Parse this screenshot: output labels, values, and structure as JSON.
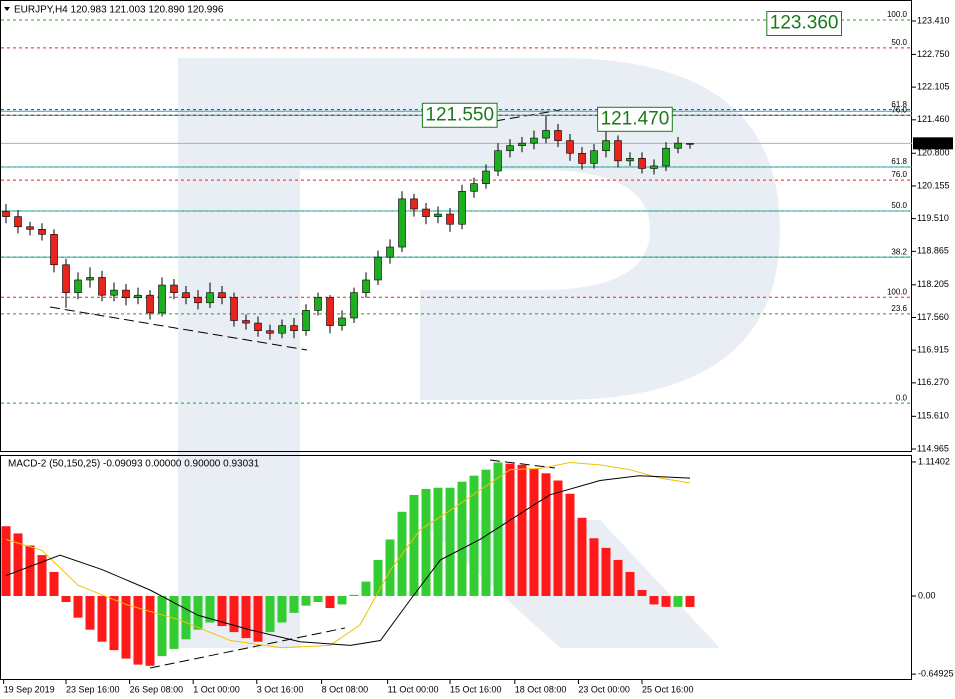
{
  "chart_data": [
    {
      "type": "candlestick",
      "title": "EURJPY,H4  120.983 121.003 120.890 120.996",
      "xlim": [
        -0.5,
        75.5
      ],
      "ylim": [
        114.906,
        123.824
      ],
      "yticks": [
        {
          "value": 123.41,
          "label": "123.410"
        },
        {
          "value": 122.75,
          "label": "122.750"
        },
        {
          "value": 122.105,
          "label": "122.105"
        },
        {
          "value": 121.46,
          "label": "121.460"
        },
        {
          "value": 120.8,
          "label": "120.800"
        },
        {
          "value": 120.155,
          "label": "120.155"
        },
        {
          "value": 119.51,
          "label": "119.510"
        },
        {
          "value": 118.865,
          "label": "118.865"
        },
        {
          "value": 118.205,
          "label": "118.205"
        },
        {
          "value": 117.56,
          "label": "117.560"
        },
        {
          "value": 116.915,
          "label": "116.915"
        },
        {
          "value": 116.27,
          "label": "116.270"
        },
        {
          "value": 115.61,
          "label": "115.610"
        },
        {
          "value": 114.965,
          "label": "114.965"
        }
      ],
      "up_color": "#1fae1f",
      "down_color": "#e8251c",
      "open": [
        119.65,
        119.55,
        119.35,
        119.3,
        119.2,
        118.6,
        118.05,
        118.3,
        118.35,
        118.0,
        118.1,
        117.95,
        118.0,
        117.65,
        118.2,
        118.05,
        117.95,
        117.85,
        118.05,
        117.95,
        117.5,
        117.45,
        117.3,
        117.25,
        117.4,
        117.3,
        117.7,
        117.95,
        117.4,
        117.55,
        118.05,
        118.3,
        118.75,
        118.95,
        119.9,
        119.7,
        119.55,
        119.6,
        119.4,
        120.05,
        120.2,
        120.45,
        120.85,
        120.95,
        121.0,
        121.1,
        121.25,
        121.05,
        120.8,
        120.6,
        120.85,
        121.05,
        120.65,
        120.7,
        120.5,
        120.55,
        120.9,
        120.983
      ],
      "high": [
        119.8,
        119.68,
        119.45,
        119.42,
        119.3,
        118.72,
        118.45,
        118.55,
        118.48,
        118.25,
        118.22,
        118.15,
        118.1,
        118.35,
        118.32,
        118.18,
        118.1,
        118.25,
        118.18,
        118.05,
        117.62,
        117.58,
        117.42,
        117.52,
        117.55,
        117.82,
        118.05,
        118.0,
        117.7,
        118.15,
        118.45,
        118.88,
        119.1,
        120.05,
        120.0,
        119.82,
        119.75,
        119.72,
        120.18,
        120.32,
        120.58,
        121.0,
        121.08,
        121.12,
        121.25,
        121.55,
        121.38,
        121.18,
        120.92,
        120.98,
        121.47,
        121.15,
        120.82,
        120.82,
        120.68,
        121.02,
        121.12,
        121.003
      ],
      "low": [
        119.42,
        119.22,
        119.18,
        119.08,
        118.45,
        117.75,
        117.92,
        118.15,
        117.88,
        117.88,
        117.8,
        117.82,
        117.52,
        117.58,
        117.92,
        117.82,
        117.72,
        117.75,
        117.82,
        117.38,
        117.32,
        117.18,
        117.12,
        117.15,
        117.15,
        117.2,
        117.6,
        117.25,
        117.3,
        117.45,
        117.95,
        118.2,
        118.62,
        118.85,
        119.55,
        119.4,
        119.42,
        119.25,
        119.3,
        119.92,
        120.1,
        120.35,
        120.72,
        120.82,
        120.88,
        121.0,
        120.92,
        120.65,
        120.48,
        120.5,
        120.72,
        120.52,
        120.55,
        120.4,
        120.38,
        120.45,
        120.8,
        120.89
      ],
      "close": [
        119.55,
        119.35,
        119.3,
        119.2,
        118.6,
        118.05,
        118.3,
        118.35,
        118.0,
        118.1,
        117.95,
        118.0,
        117.65,
        118.2,
        118.05,
        117.95,
        117.85,
        118.05,
        117.95,
        117.5,
        117.45,
        117.3,
        117.25,
        117.4,
        117.3,
        117.7,
        117.95,
        117.4,
        117.55,
        118.05,
        118.3,
        118.75,
        118.95,
        119.9,
        119.7,
        119.55,
        119.6,
        119.4,
        120.05,
        120.2,
        120.45,
        120.85,
        120.95,
        121.0,
        121.1,
        121.25,
        121.05,
        120.8,
        120.6,
        120.85,
        121.05,
        120.65,
        120.7,
        120.5,
        120.55,
        120.9,
        121.0,
        120.996
      ],
      "last_price": 120.996,
      "annotations": [
        {
          "x": 63.4,
          "value": 123.36,
          "label": "123.360"
        },
        {
          "x": 34.7,
          "value": 121.55,
          "label": "121.550"
        },
        {
          "x": 49.3,
          "value": 121.47,
          "label": "121.470"
        }
      ],
      "fib_levels": [
        {
          "ratio": "100.0",
          "price": 123.43,
          "color": "#1fa51f"
        },
        {
          "ratio": "50.0",
          "price": 122.88,
          "color": "#e8251c"
        },
        {
          "ratio": "61.8",
          "price": 121.66,
          "color": "#b01010"
        },
        {
          "ratio": "76.0",
          "price": 121.55,
          "color": "#b01010"
        },
        {
          "ratio": "61.8",
          "price": 120.53,
          "color": "#1fa51f"
        },
        {
          "ratio": "76.0",
          "price": 120.27,
          "color": "#e8251c"
        },
        {
          "ratio": "50.0",
          "price": 119.66,
          "color": "#1fa51f"
        },
        {
          "ratio": "38.2",
          "price": 118.75,
          "color": "#1fa51f"
        },
        {
          "ratio": "100.0",
          "price": 117.96,
          "color": "#e8251c"
        },
        {
          "ratio": "23.6",
          "price": 117.63,
          "color": "#1fa51f"
        },
        {
          "ratio": "0.0",
          "price": 115.87,
          "color": "#1fa51f"
        }
      ],
      "level_lines": [
        121.63,
        121.55,
        120.53,
        119.66,
        118.75
      ],
      "level_color": "#2aa7c9"
    },
    {
      "type": "macd",
      "title": "MACD-2 (50,150,25) -0.09093 0.00000 0.90000 0.93031",
      "xlim": [
        -0.5,
        75.5
      ],
      "ylim": [
        -0.698,
        1.172
      ],
      "yticks": [
        1.11402,
        {
          "value": 0,
          "label": "0.00"
        },
        -0.64925
      ],
      "xticks": [
        {
          "value": -0.2,
          "label": "19 Sep 2019"
        },
        {
          "value": 5,
          "label": "23 Sep 16:00"
        },
        {
          "value": 10.3,
          "label": "26 Sep 08:00"
        },
        {
          "value": 15.6,
          "label": "1 Oct 00:00"
        },
        {
          "value": 20.9,
          "label": "3 Oct 16:00"
        },
        {
          "value": 26.3,
          "label": "8 Oct 08:00"
        },
        {
          "value": 31.8,
          "label": "11 Oct 00:00"
        },
        {
          "value": 37,
          "label": "15 Oct 16:00"
        },
        {
          "value": 42.4,
          "label": "18 Oct 08:00"
        },
        {
          "value": 47.7,
          "label": "23 Oct 00:00"
        },
        {
          "value": 53,
          "label": "25 Oct 16:00"
        }
      ],
      "up_color": "#33cc33",
      "down_color": "#ff1a1a",
      "values": [
        0.58,
        0.52,
        0.42,
        0.34,
        0.2,
        -0.05,
        -0.18,
        -0.28,
        -0.38,
        -0.45,
        -0.52,
        -0.57,
        -0.58,
        -0.5,
        -0.44,
        -0.36,
        -0.28,
        -0.22,
        -0.25,
        -0.3,
        -0.35,
        -0.38,
        -0.3,
        -0.22,
        -0.14,
        -0.08,
        -0.05,
        -0.1,
        -0.07,
        0.01,
        0.12,
        0.3,
        0.47,
        0.7,
        0.84,
        0.89,
        0.9,
        0.9,
        0.95,
        1.0,
        1.05,
        1.11,
        1.1,
        1.09,
        1.06,
        1.02,
        0.96,
        0.85,
        0.65,
        0.48,
        0.4,
        0.3,
        0.2,
        0.05,
        -0.07,
        -0.09,
        -0.09,
        -0.09093
      ],
      "lines": [
        {
          "color": "#f2c200",
          "x": [
            0,
            3,
            6,
            10,
            14.5,
            18.7,
            23,
            27,
            29.5,
            32,
            34.5,
            37,
            39.5,
            42,
            44.5,
            47,
            49.5,
            52,
            54.5,
            57
          ],
          "values": [
            0.47,
            0.38,
            0.09,
            -0.07,
            -0.2,
            -0.37,
            -0.43,
            -0.41,
            -0.24,
            0.21,
            0.55,
            0.71,
            0.88,
            1.05,
            1.06,
            1.11,
            1.09,
            1.05,
            0.98,
            0.94
          ]
        },
        {
          "color": "#000000",
          "x": [
            0,
            4.5,
            8,
            12,
            16,
            20.3,
            24.5,
            28.7,
            31.2,
            33.7,
            36.2,
            39.5,
            42,
            45.3,
            49.5,
            52.8,
            57
          ],
          "values": [
            0.17,
            0.34,
            0.22,
            0.05,
            -0.16,
            -0.28,
            -0.38,
            -0.41,
            -0.37,
            -0.03,
            0.3,
            0.47,
            0.63,
            0.84,
            0.96,
            1.0,
            0.98
          ]
        }
      ]
    }
  ]
}
